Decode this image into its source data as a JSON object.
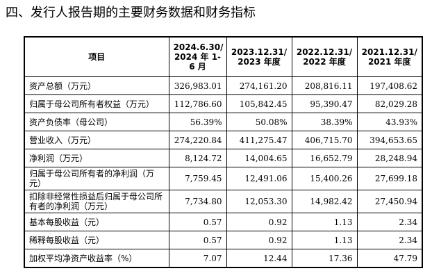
{
  "title": "四、发行人报告期的主要财务数据和财务指标",
  "table": {
    "headers": [
      "项目",
      "2024.6.30/ 2024 年 1-6 月",
      "2023.12.31/ 2023 年度",
      "2022.12.31/ 2022 年度",
      "2021.12.31/ 2021 年度"
    ],
    "rows": [
      {
        "label": "资产总额（万元）",
        "values": [
          "326,983.01",
          "274,161.20",
          "208,816.11",
          "197,408.62"
        ]
      },
      {
        "label": "归属于母公司所有者权益（万元）",
        "values": [
          "112,786.60",
          "105,842.45",
          "95,390.47",
          "82,029.28"
        ]
      },
      {
        "label": "资产负债率（母公司）",
        "values": [
          "56.39%",
          "50.08%",
          "38.39%",
          "43.93%"
        ]
      },
      {
        "label": "营业收入（万元）",
        "values": [
          "274,220.84",
          "411,275.47",
          "406,715.70",
          "394,653.65"
        ]
      },
      {
        "label": "净利润（万元）",
        "values": [
          "8,124.72",
          "14,004.65",
          "16,652.79",
          "28,248.94"
        ]
      },
      {
        "label": "归属于母公司所有者的净利润（万元）",
        "values": [
          "7,759.45",
          "12,491.06",
          "15,400.26",
          "27,699.18"
        ]
      },
      {
        "label": "扣除非经常性损益后归属于母公司所有者的净利润（万元）",
        "values": [
          "7,734.80",
          "12,053.30",
          "14,982.42",
          "27,450.94"
        ]
      },
      {
        "label": "基本每股收益（元）",
        "values": [
          "0.57",
          "0.92",
          "1.13",
          "2.34"
        ]
      },
      {
        "label": "稀释每股收益（元）",
        "values": [
          "0.57",
          "0.92",
          "1.13",
          "2.34"
        ]
      },
      {
        "label": "加权平均净资产收益率（%）",
        "values": [
          "7.07",
          "12.44",
          "17.36",
          "47.79"
        ]
      }
    ]
  }
}
